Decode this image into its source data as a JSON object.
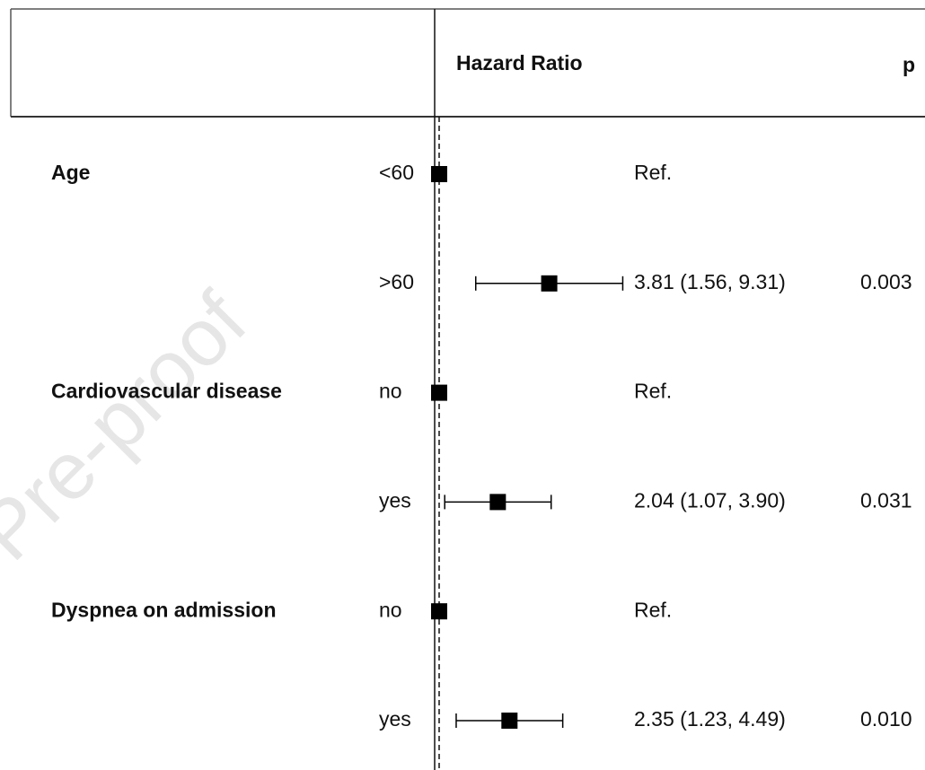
{
  "chart_data": {
    "type": "forest",
    "estimate_header": "Hazard Ratio",
    "p_header": "p",
    "watermark": "Pre-proof",
    "groups": [
      "Age",
      null,
      "Cardiovascular disease",
      null,
      "Dyspnea on admission",
      null
    ],
    "categories": [
      "<60",
      ">60",
      "no",
      "yes",
      "no",
      "yes"
    ],
    "values": [
      1,
      3.81,
      1,
      2.04,
      1,
      2.35
    ],
    "lower": [
      null,
      1.56,
      null,
      1.07,
      null,
      1.23
    ],
    "upper": [
      null,
      9.31,
      null,
      3.9,
      null,
      4.49
    ],
    "value_labels": [
      "Ref.",
      "3.81 (1.56, 9.31)",
      "Ref.",
      "2.04 (1.07, 3.90)",
      "Ref.",
      "2.35 (1.23, 4.49)"
    ],
    "p_values": [
      null,
      "0.003",
      null,
      "0.031",
      null,
      "0.010"
    ],
    "xlim": [
      1,
      10
    ],
    "log_scale": true,
    "reference_line": 1,
    "color": "#000000"
  }
}
